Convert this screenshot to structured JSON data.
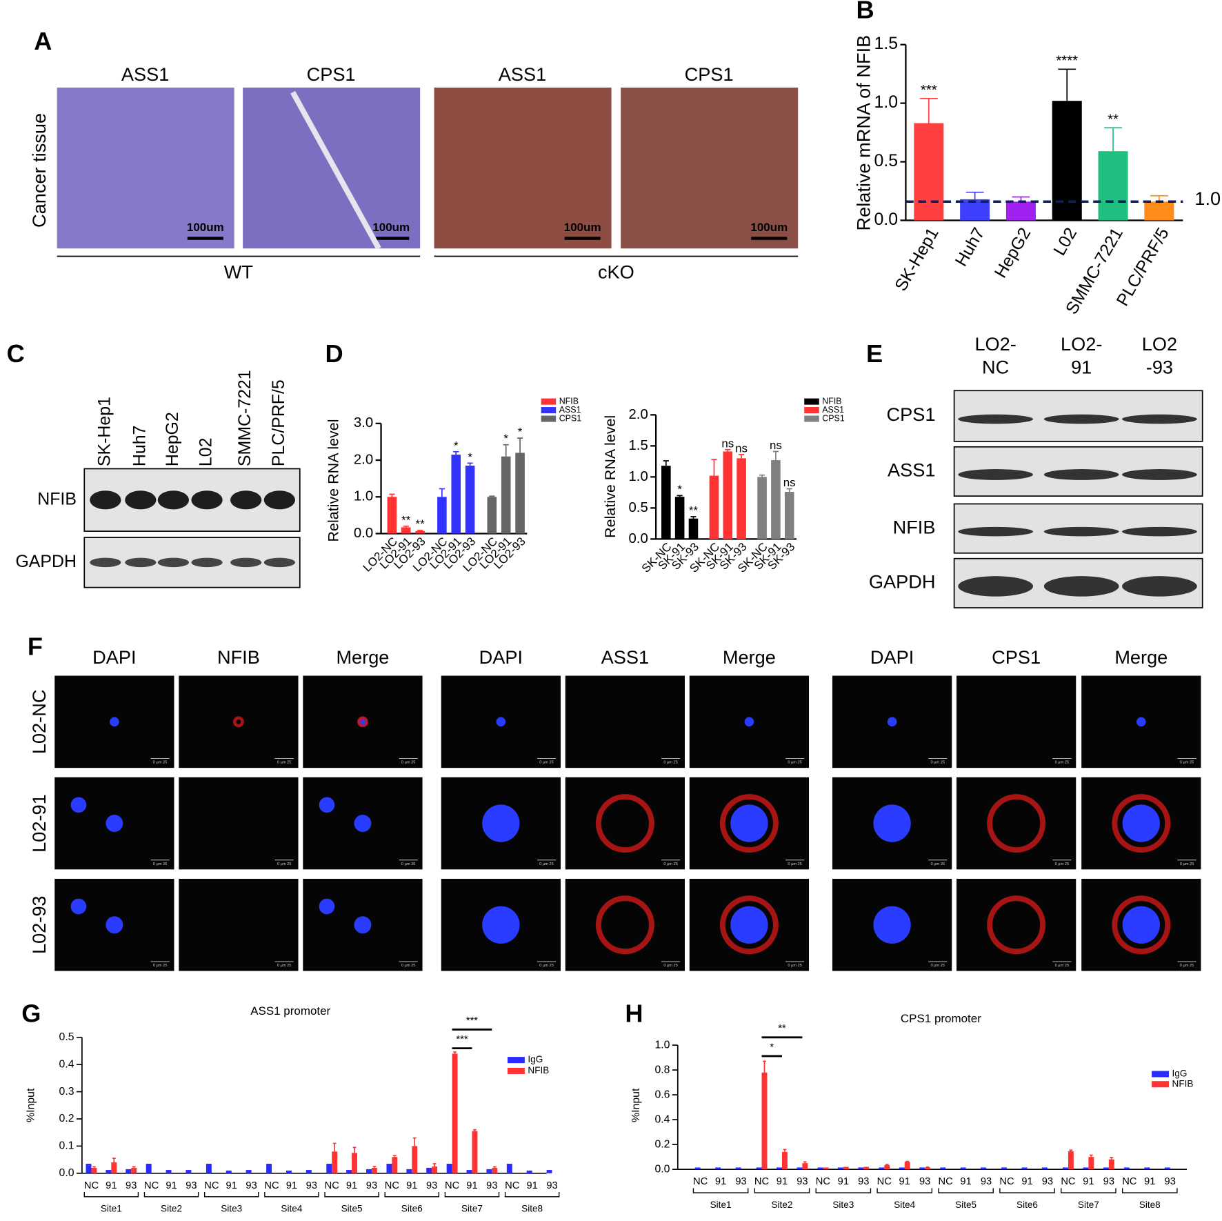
{
  "panel_a": {
    "letter": "A",
    "columns": [
      "ASS1",
      "CPS1",
      "ASS1",
      "CPS1"
    ],
    "row_label": "Cancer tissue",
    "scale_bar": "100um",
    "groups": [
      "WT",
      "cKO"
    ]
  },
  "panel_c": {
    "letter": "C",
    "lanes": [
      "SK-Hep1",
      "Huh7",
      "HepG2",
      "L02",
      "SMMC-7221",
      "PLC/PRF/5"
    ],
    "rows": [
      "NFIB",
      "GAPDH"
    ]
  },
  "panel_e": {
    "letter": "E",
    "lanes": [
      [
        "LO2-",
        "NC"
      ],
      [
        "LO2-",
        "91"
      ],
      [
        "LO2",
        "-93"
      ]
    ],
    "rows": [
      "CPS1",
      "ASS1",
      "NFIB",
      "GAPDH"
    ]
  },
  "panel_f": {
    "letter": "F",
    "groups": [
      [
        "DAPI",
        "NFIB",
        "Merge"
      ],
      [
        "DAPI",
        "ASS1",
        "Merge"
      ],
      [
        "DAPI",
        "CPS1",
        "Merge"
      ]
    ],
    "rows": [
      "L02-NC",
      "L02-91",
      "L02-93"
    ],
    "scale_label": "0 µm 25"
  },
  "chart_data": [
    {
      "type": "bar",
      "panel": "B",
      "ylabel": "Relative mRNA of NFIB",
      "categories": [
        "SK-Hep1",
        "Huh7",
        "HepG2",
        "L02",
        "SMMC-7221",
        "PLC/PRF/5"
      ],
      "values": [
        0.83,
        0.18,
        0.16,
        1.02,
        0.59,
        0.16
      ],
      "errors": [
        0.21,
        0.06,
        0.04,
        0.27,
        0.2,
        0.05
      ],
      "significance": [
        "***",
        null,
        null,
        "****",
        "**",
        null
      ],
      "colors": [
        "#ff4040",
        "#3f3fff",
        "#a020f0",
        "#000000",
        "#1fbf7f",
        "#ff8c1a"
      ],
      "ylim": [
        0,
        1.5
      ],
      "yticks": [
        {
          "value": 0,
          "label": "0.0"
        },
        0.5,
        {
          "value": 1,
          "label": "1.0"
        },
        1.5
      ],
      "reference_line": {
        "value": 0.16,
        "label": "1.0"
      }
    },
    {
      "type": "bar",
      "panel": "D",
      "ylabel": "Relative RNA level",
      "categories": [
        "LO2-NC",
        "LO2-91",
        "LO2-93",
        "LO2-NC",
        "LO2-91",
        "LO2-93",
        "LO2-NC",
        "LO2-91",
        "LO2-93"
      ],
      "series": [
        {
          "name": "NFIB",
          "color": "#ff3333",
          "values": [
            1.0,
            0.17,
            0.07,
            null,
            null,
            null,
            null,
            null,
            null
          ],
          "errors": [
            0.07,
            0.03,
            0.02,
            null,
            null,
            null,
            null,
            null,
            null
          ],
          "significance": [
            null,
            "**",
            "**",
            null,
            null,
            null,
            null,
            null,
            null
          ]
        },
        {
          "name": "ASS1",
          "color": "#3333ff",
          "values": [
            null,
            null,
            null,
            1.0,
            2.15,
            1.85,
            null,
            null,
            null
          ],
          "errors": [
            null,
            null,
            null,
            0.22,
            0.08,
            0.07,
            null,
            null,
            null
          ],
          "significance": [
            null,
            null,
            null,
            null,
            "*",
            "*",
            null,
            null,
            null
          ]
        },
        {
          "name": "CPS1",
          "color": "#666666",
          "values": [
            null,
            null,
            null,
            null,
            null,
            null,
            1.0,
            2.1,
            2.2
          ],
          "errors": [
            null,
            null,
            null,
            null,
            null,
            null,
            0.02,
            0.32,
            0.4
          ],
          "significance": [
            null,
            null,
            null,
            null,
            null,
            null,
            null,
            "*",
            "*"
          ]
        }
      ],
      "ylim": [
        0,
        3
      ],
      "yticks": [
        {
          "value": 0,
          "label": "0.0"
        },
        {
          "value": 1,
          "label": "1.0"
        },
        {
          "value": 2,
          "label": "2.0"
        },
        {
          "value": 3,
          "label": "3.0"
        }
      ]
    },
    {
      "type": "bar",
      "ylabel": "Relative RNA level",
      "categories": [
        "SK-NC",
        "SK-91",
        "SK-93",
        "SK-NC",
        "SK-91",
        "SK-93",
        "SK-NC",
        "SK-91",
        "SK-93"
      ],
      "series": [
        {
          "name": "NFIB",
          "color": "#000000",
          "values": [
            1.18,
            0.68,
            0.33,
            null,
            null,
            null,
            null,
            null,
            null
          ],
          "errors": [
            0.08,
            0.02,
            0.03,
            null,
            null,
            null,
            null,
            null,
            null
          ],
          "significance": [
            null,
            "*",
            "**",
            null,
            null,
            null,
            null,
            null,
            null
          ]
        },
        {
          "name": "ASS1",
          "color": "#ff3333",
          "values": [
            null,
            null,
            null,
            1.02,
            1.41,
            1.3,
            null,
            null,
            null
          ],
          "errors": [
            null,
            null,
            null,
            0.26,
            0.03,
            0.06,
            null,
            null,
            null
          ],
          "significance": [
            null,
            null,
            null,
            null,
            "ns",
            "ns",
            null,
            null,
            null
          ]
        },
        {
          "name": "CPS1",
          "color": "#808080",
          "values": [
            null,
            null,
            null,
            null,
            null,
            null,
            1.0,
            1.27,
            0.76
          ],
          "errors": [
            null,
            null,
            null,
            null,
            null,
            null,
            0.03,
            0.14,
            0.05
          ],
          "significance": [
            null,
            null,
            null,
            null,
            null,
            null,
            null,
            "ns",
            "ns"
          ]
        }
      ],
      "ylim": [
        0,
        2
      ],
      "yticks": [
        {
          "value": 0,
          "label": "0.0"
        },
        0.5,
        {
          "value": 1,
          "label": "1.0"
        },
        1.5,
        {
          "value": 2,
          "label": "2.0"
        }
      ]
    },
    {
      "type": "bar",
      "panel": "G",
      "title": "ASS1 promoter",
      "ylabel": "%Input",
      "categories": [
        "NC",
        "91",
        "93",
        "NC",
        "91",
        "93",
        "NC",
        "91",
        "93",
        "NC",
        "91",
        "93",
        "NC",
        "91",
        "93",
        "NC",
        "91",
        "93",
        "NC",
        "91",
        "93",
        "NC",
        "91",
        "93"
      ],
      "groups": [
        "Site1",
        "Site2",
        "Site3",
        "Site4",
        "Site5",
        "Site6",
        "Site7",
        "Site8"
      ],
      "series": [
        {
          "name": "IgG",
          "color": "#2b2bff",
          "values": [
            0.035,
            0.012,
            0.015,
            0.035,
            0.012,
            0.012,
            0.035,
            0.01,
            0.012,
            0.035,
            0.01,
            0.012,
            0.035,
            0.012,
            0.015,
            0.035,
            0.015,
            0.02,
            0.035,
            0.012,
            0.015,
            0.035,
            0.01,
            0.012
          ]
        },
        {
          "name": "NFIB",
          "color": "#ff3333",
          "values": [
            0.02,
            0.04,
            0.02,
            0,
            0,
            0,
            0,
            0,
            0,
            0,
            0,
            0,
            0.08,
            0.075,
            0.02,
            0.06,
            0.1,
            0.025,
            0.44,
            0.155,
            0.02,
            0,
            0,
            0
          ],
          "errors": [
            0.004,
            0.015,
            0.004,
            null,
            null,
            null,
            null,
            null,
            null,
            null,
            null,
            null,
            0.03,
            0.02,
            0.005,
            0.005,
            0.03,
            0.01,
            0.006,
            0.005,
            0.004,
            null,
            null,
            null
          ]
        }
      ],
      "brackets": [
        {
          "from": 18,
          "to": 19,
          "label": "***"
        },
        {
          "from": 18,
          "to": 20,
          "label": "***"
        }
      ],
      "ylim": [
        0,
        0.5
      ],
      "yticks": [
        {
          "value": 0,
          "label": "0.0"
        },
        0.1,
        0.2,
        0.3,
        0.4,
        0.5
      ]
    },
    {
      "type": "bar",
      "panel": "H",
      "title": "CPS1 promoter",
      "ylabel": "%Input",
      "categories": [
        "NC",
        "91",
        "93",
        "NC",
        "91",
        "93",
        "NC",
        "91",
        "93",
        "NC",
        "91",
        "93",
        "NC",
        "91",
        "93",
        "NC",
        "91",
        "93",
        "NC",
        "91",
        "93",
        "NC",
        "91",
        "93"
      ],
      "groups": [
        "Site1",
        "Site2",
        "Site3",
        "Site4",
        "Site5",
        "Site6",
        "Site7",
        "Site8"
      ],
      "series": [
        {
          "name": "IgG",
          "color": "#2b2bff",
          "values": [
            0.015,
            0.015,
            0.015,
            0.015,
            0.015,
            0.015,
            0.015,
            0.015,
            0.015,
            0.015,
            0.015,
            0.015,
            0.015,
            0.015,
            0.015,
            0.015,
            0.015,
            0.015,
            0.015,
            0.015,
            0.015,
            0.015,
            0.015,
            0.015
          ]
        },
        {
          "name": "NFIB",
          "color": "#ff3333",
          "values": [
            0,
            0,
            0,
            0.78,
            0.14,
            0.05,
            0.015,
            0.02,
            0.02,
            0.035,
            0.06,
            0.015,
            0,
            0,
            0,
            0,
            0,
            0,
            0.145,
            0.1,
            0.08,
            0,
            0,
            0
          ],
          "errors": [
            null,
            null,
            null,
            0.09,
            0.02,
            0.01,
            null,
            null,
            null,
            0.005,
            0.004,
            0.003,
            null,
            null,
            null,
            null,
            null,
            null,
            0.01,
            0.015,
            0.015,
            null,
            null,
            null
          ]
        }
      ],
      "brackets": [
        {
          "from": 3,
          "to": 4,
          "label": "*"
        },
        {
          "from": 3,
          "to": 5,
          "label": "**"
        }
      ],
      "ylim": [
        0,
        1
      ],
      "yticks": [
        {
          "value": 0,
          "label": "0.0"
        },
        0.2,
        0.4,
        0.6,
        0.8,
        {
          "value": 1,
          "label": "1.0"
        }
      ]
    }
  ]
}
